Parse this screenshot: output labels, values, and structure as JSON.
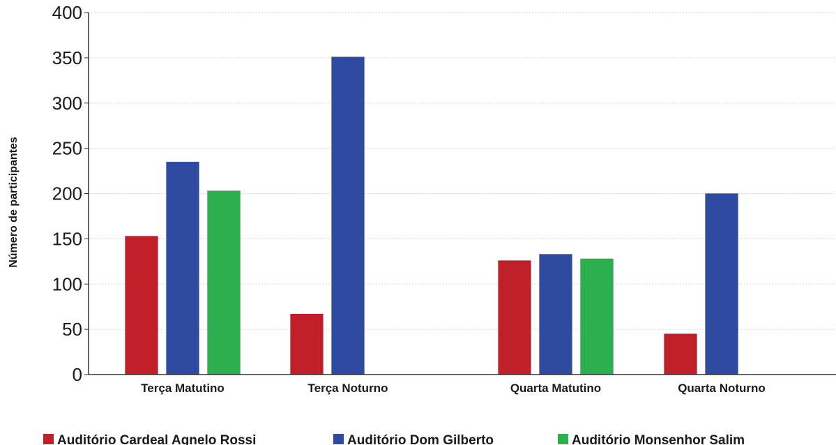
{
  "chart_data": {
    "type": "bar",
    "title": "",
    "xlabel": "",
    "ylabel": "Número de participantes",
    "ylim": [
      0,
      400
    ],
    "yticks": [
      0,
      50,
      100,
      150,
      200,
      250,
      300,
      350,
      400
    ],
    "grid": true,
    "legend_position": "bottom",
    "categories": [
      "Terça Matutino",
      "Terça Noturno",
      "Quarta Matutino",
      "Quarta Noturno"
    ],
    "series": [
      {
        "name": "Auditório Cardeal Agnelo Rossi",
        "color": "#c0202a",
        "values": [
          153,
          67,
          126,
          45
        ]
      },
      {
        "name": "Auditório Dom Gilberto",
        "color": "#2f4ba0",
        "values": [
          235,
          351,
          133,
          200
        ]
      },
      {
        "name": "Auditório Monsenhor Salim",
        "color": "#2eaf4f",
        "values": [
          203,
          null,
          128,
          null
        ]
      }
    ]
  }
}
